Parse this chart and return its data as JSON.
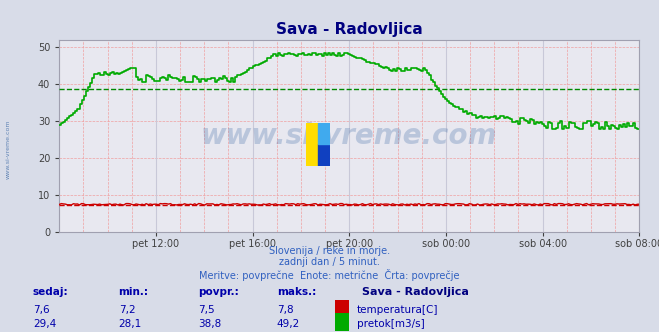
{
  "title": "Sava - Radovljica",
  "title_color": "#000080",
  "bg_color": "#d8dce8",
  "plot_bg_color": "#e8e8f0",
  "grid_color_major": "#c8c8d8",
  "grid_color_minor": "#f0a0a0",
  "ylim": [
    0,
    52
  ],
  "yticks": [
    0,
    10,
    20,
    30,
    40,
    50
  ],
  "avg_line_value_flow": 38.8,
  "avg_line_value_temp": 7.5,
  "temp_color": "#cc0000",
  "flow_color": "#00aa00",
  "flow_avg_color": "#008800",
  "watermark_text": "www.si-vreme.com",
  "watermark_color": "#3060a0",
  "watermark_alpha": 0.25,
  "subtitle1": "Slovenija / reke in morje.",
  "subtitle2": "zadnji dan / 5 minut.",
  "subtitle3": "Meritve: povprečne  Enote: metrične  Črta: povprečje",
  "subtitle_color": "#3060c0",
  "legend_title": "Sava - Radovljica",
  "legend_color": "#000080",
  "footer_labels": [
    "sedaj:",
    "min.:",
    "povpr.:",
    "maks.:"
  ],
  "footer_temp": [
    "7,6",
    "7,2",
    "7,5",
    "7,8"
  ],
  "footer_flow": [
    "29,4",
    "28,1",
    "38,8",
    "49,2"
  ],
  "footer_color": "#0000aa",
  "temp_label": "temperatura[C]",
  "flow_label": "pretok[m3/s]",
  "x_tick_labels": [
    "pet 12:00",
    "pet 16:00",
    "pet 20:00",
    "sob 00:00",
    "sob 04:00",
    "sob 08:00"
  ],
  "left_label": "www.si-vreme.com",
  "left_label_color": "#3060a0"
}
